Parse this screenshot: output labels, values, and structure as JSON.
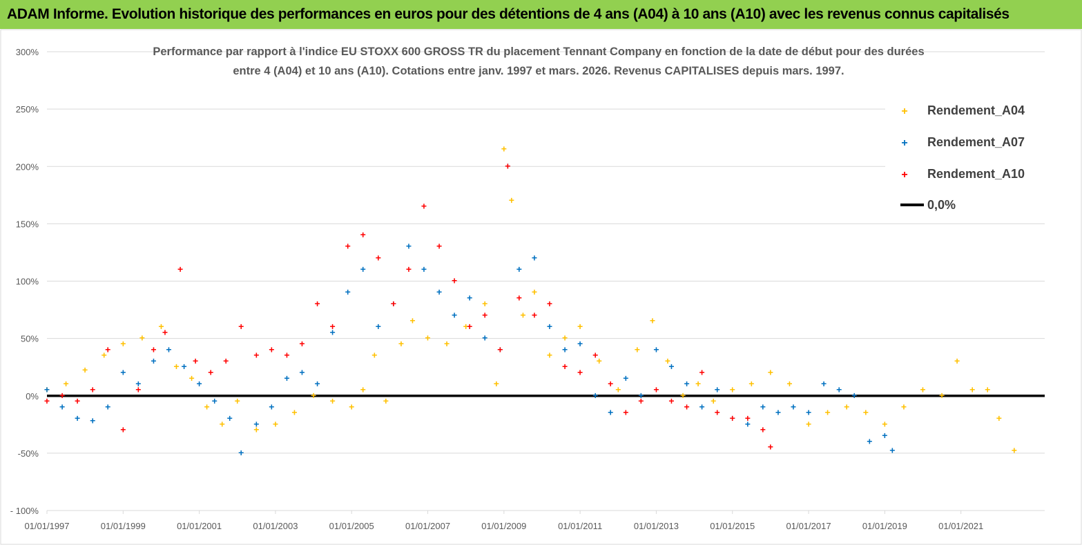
{
  "header": {
    "title": "ADAM Informe. Evolution historique des performances en euros pour des détentions de 4 ans (A04) à 10 ans (A10) avec les revenus connus capitalisés"
  },
  "colors": {
    "header_bg": "#92d050",
    "a04": "#ffc000",
    "a07": "#0070c0",
    "a10": "#ff0000",
    "zero_line": "#000000",
    "grid": "#d9d9d9"
  },
  "chart_data": {
    "type": "scatter",
    "title_line1": "Performance par rapport à l'indice EU STOXX 600 GROSS TR  du placement Tennant Company en fonction de la date de début pour des durées",
    "title_line2": "entre 4 (A04) et 10 ans (A10). Cotations entre janv. 1997 et mars. 2026. Revenus CAPITALISES depuis mars. 1997.",
    "xlabel": "",
    "ylabel": "",
    "ylim": [
      -100,
      300
    ],
    "xlim": [
      1997.0,
      2023.2
    ],
    "grid": "horizontal",
    "legend_position": "top-right",
    "y_ticks": [
      "300%",
      "250%",
      "200%",
      "150%",
      "100%",
      "50%",
      "0%",
      "-50%",
      "- 100%"
    ],
    "x_ticks": [
      "01/01/1997",
      "01/01/1999",
      "01/01/2001",
      "01/01/2003",
      "01/01/2005",
      "01/01/2007",
      "01/01/2009",
      "01/01/2011",
      "01/01/2013",
      "01/01/2015",
      "01/01/2017",
      "01/01/2019",
      "01/01/2021"
    ],
    "series": [
      {
        "name": "Rendement_A04",
        "color": "#ffc000",
        "x": [
          1997.0,
          1997.5,
          1998.0,
          1998.5,
          1999.0,
          1999.5,
          2000.0,
          2000.4,
          2000.8,
          2001.2,
          2001.6,
          2002.0,
          2002.5,
          2003.0,
          2003.5,
          2004.0,
          2004.5,
          2005.0,
          2005.3,
          2005.6,
          2005.9,
          2006.3,
          2006.6,
          2007.0,
          2007.5,
          2008.0,
          2008.5,
          2008.8,
          2009.0,
          2009.2,
          2009.5,
          2009.8,
          2010.2,
          2010.6,
          2011.0,
          2011.5,
          2012.0,
          2012.5,
          2012.9,
          2013.3,
          2013.7,
          2014.1,
          2014.5,
          2015.0,
          2015.5,
          2016.0,
          2016.5,
          2017.0,
          2017.5,
          2018.0,
          2018.5,
          2019.0,
          2019.5,
          2020.0,
          2020.5,
          2020.9,
          2021.3,
          2021.7,
          2022.0,
          2022.4
        ],
        "y": [
          5,
          10,
          22,
          35,
          45,
          50,
          60,
          25,
          15,
          -10,
          -25,
          -5,
          -30,
          -25,
          -15,
          0,
          -5,
          -10,
          5,
          35,
          -5,
          45,
          65,
          50,
          45,
          60,
          80,
          10,
          215,
          170,
          70,
          90,
          35,
          50,
          60,
          30,
          5,
          40,
          65,
          30,
          0,
          10,
          -5,
          5,
          10,
          20,
          10,
          -25,
          -15,
          -10,
          -15,
          -25,
          -10,
          5,
          0,
          30,
          5,
          5,
          -20,
          -48
        ]
      },
      {
        "name": "Rendement_A07",
        "color": "#0070c0",
        "x": [
          1997.0,
          1997.4,
          1997.8,
          1998.2,
          1998.6,
          1999.0,
          1999.4,
          1999.8,
          2000.2,
          2000.6,
          2001.0,
          2001.4,
          2001.8,
          2002.1,
          2002.5,
          2002.9,
          2003.3,
          2003.7,
          2004.1,
          2004.5,
          2004.9,
          2005.3,
          2005.7,
          2006.1,
          2006.5,
          2006.9,
          2007.3,
          2007.7,
          2008.1,
          2008.5,
          2008.9,
          2009.1,
          2009.4,
          2009.8,
          2010.2,
          2010.6,
          2011.0,
          2011.4,
          2011.8,
          2012.2,
          2012.6,
          2013.0,
          2013.4,
          2013.8,
          2014.2,
          2014.6,
          2015.0,
          2015.4,
          2015.8,
          2016.2,
          2016.6,
          2017.0,
          2017.4,
          2017.8,
          2018.2,
          2018.6,
          2019.0,
          2019.2
        ],
        "y": [
          5,
          -10,
          -20,
          -22,
          -10,
          20,
          10,
          30,
          40,
          25,
          10,
          -5,
          -20,
          -50,
          -25,
          -10,
          15,
          20,
          10,
          55,
          90,
          110,
          60,
          80,
          130,
          110,
          90,
          70,
          85,
          50,
          40,
          200,
          110,
          120,
          60,
          40,
          45,
          0,
          -15,
          15,
          0,
          40,
          25,
          10,
          -10,
          5,
          -20,
          -25,
          -10,
          -15,
          -10,
          -15,
          10,
          5,
          0,
          -40,
          -35,
          -48
        ]
      },
      {
        "name": "Rendement_A10",
        "color": "#ff0000",
        "x": [
          1997.0,
          1997.4,
          1997.8,
          1998.2,
          1998.6,
          1999.0,
          1999.4,
          1999.8,
          2000.1,
          2000.5,
          2000.9,
          2001.3,
          2001.7,
          2002.1,
          2002.5,
          2002.9,
          2003.3,
          2003.7,
          2004.1,
          2004.5,
          2004.9,
          2005.3,
          2005.7,
          2006.1,
          2006.5,
          2006.9,
          2007.3,
          2007.7,
          2008.1,
          2008.5,
          2008.9,
          2009.1,
          2009.4,
          2009.8,
          2010.2,
          2010.6,
          2011.0,
          2011.4,
          2011.8,
          2012.2,
          2012.6,
          2013.0,
          2013.4,
          2013.8,
          2014.2,
          2014.6,
          2015.0,
          2015.4,
          2015.8,
          2016.0
        ],
        "y": [
          -5,
          0,
          -5,
          5,
          40,
          -30,
          5,
          40,
          55,
          110,
          30,
          20,
          30,
          60,
          35,
          40,
          35,
          45,
          80,
          60,
          130,
          140,
          120,
          80,
          110,
          165,
          130,
          100,
          60,
          70,
          40,
          200,
          85,
          70,
          80,
          25,
          20,
          35,
          10,
          -15,
          -5,
          5,
          -5,
          -10,
          20,
          -15,
          -20,
          -20,
          -30,
          -45
        ]
      },
      {
        "name": "0,0%",
        "color": "#000000",
        "x": [
          1997.0,
          2023.2
        ],
        "y": [
          0,
          0
        ]
      }
    ]
  }
}
